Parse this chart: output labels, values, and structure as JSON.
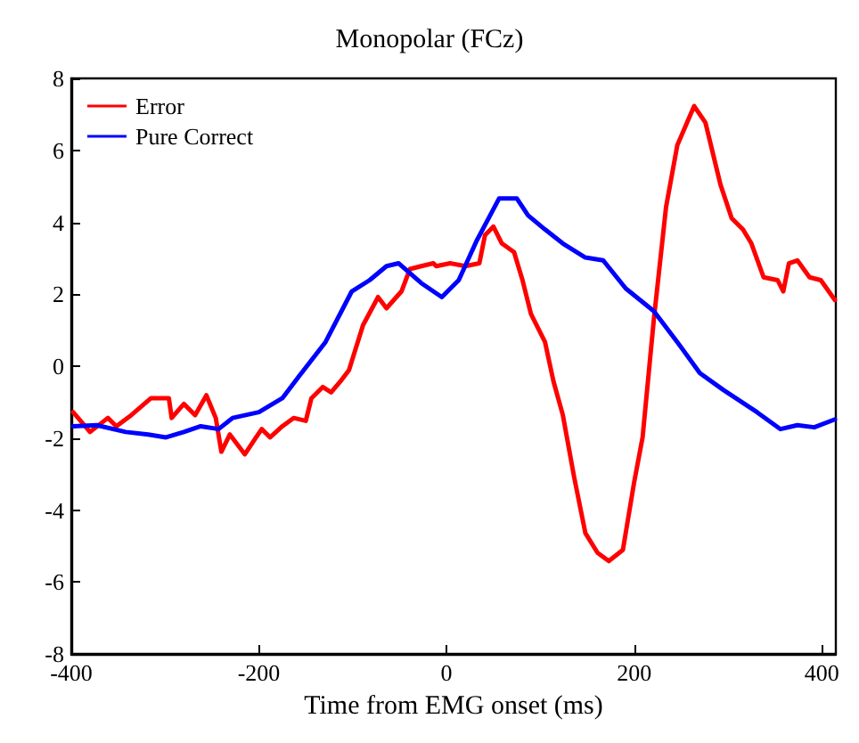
{
  "chart_data": {
    "type": "line",
    "title": "Monopolar (FCz)",
    "xlabel": "Time from EMG onset (ms)",
    "xlim": [
      -400,
      415
    ],
    "xticks": [
      -400,
      -200,
      0,
      200,
      400
    ],
    "ylim": [
      -8,
      8
    ],
    "yticks": [
      -8,
      -6,
      -4,
      -2,
      0,
      2,
      4,
      6,
      8
    ],
    "grid": false,
    "legend": "top left",
    "marker": "none",
    "line_style": "solid",
    "series": [
      {
        "name": "Error",
        "color": "#ff0000",
        "x": [
          -398,
          -380,
          -361,
          -352,
          -336,
          -315,
          -296,
          -293,
          -280,
          -268,
          -256,
          -246,
          -240,
          -231,
          -215,
          -203,
          -197,
          -188,
          -175,
          -163,
          -150,
          -144,
          -132,
          -123,
          -113,
          -104,
          -89,
          -73,
          -64,
          -48,
          -39,
          -27,
          -14,
          -11,
          4,
          20,
          35,
          41,
          50,
          59,
          72,
          81,
          90,
          105,
          114,
          124,
          136,
          148,
          161,
          173,
          188,
          200,
          209,
          221,
          234,
          246,
          264,
          276,
          292,
          304,
          316,
          325,
          338,
          353,
          359,
          365,
          374,
          387,
          399,
          414
        ],
        "values": [
          -1.28,
          -1.83,
          -1.44,
          -1.67,
          -1.36,
          -0.89,
          -0.89,
          -1.44,
          -1.05,
          -1.36,
          -0.81,
          -1.44,
          -2.38,
          -1.9,
          -2.45,
          -1.98,
          -1.75,
          -1.98,
          -1.67,
          -1.44,
          -1.52,
          -0.89,
          -0.58,
          -0.73,
          -0.42,
          -0.11,
          1.14,
          1.92,
          1.61,
          2.08,
          2.7,
          2.78,
          2.86,
          2.78,
          2.86,
          2.78,
          2.86,
          3.64,
          3.88,
          3.41,
          3.17,
          2.39,
          1.45,
          0.67,
          -0.42,
          -1.36,
          -3.08,
          -4.64,
          -5.19,
          -5.42,
          -5.11,
          -3.23,
          -1.98,
          1.3,
          4.42,
          6.14,
          7.23,
          6.77,
          5.05,
          4.11,
          3.8,
          3.41,
          2.47,
          2.39,
          2.08,
          2.86,
          2.94,
          2.47,
          2.39,
          1.84
        ]
      },
      {
        "name": "Pure Correct",
        "color": "#0000ff",
        "x": [
          -398,
          -373,
          -342,
          -318,
          -299,
          -280,
          -262,
          -243,
          -228,
          -200,
          -175,
          -157,
          -129,
          -101,
          -82,
          -64,
          -51,
          -27,
          -5,
          13,
          32,
          56,
          75,
          87,
          105,
          124,
          148,
          167,
          191,
          221,
          246,
          270,
          295,
          331,
          356,
          374,
          392,
          414
        ],
        "values": [
          -1.67,
          -1.64,
          -1.83,
          -1.9,
          -1.98,
          -1.83,
          -1.67,
          -1.75,
          -1.44,
          -1.28,
          -0.89,
          -0.27,
          0.67,
          2.08,
          2.39,
          2.78,
          2.86,
          2.31,
          1.92,
          2.39,
          3.48,
          4.66,
          4.66,
          4.19,
          3.8,
          3.41,
          3.02,
          2.94,
          2.16,
          1.53,
          0.67,
          -0.19,
          -0.66,
          -1.28,
          -1.75,
          -1.64,
          -1.7,
          -1.48
        ]
      }
    ]
  }
}
